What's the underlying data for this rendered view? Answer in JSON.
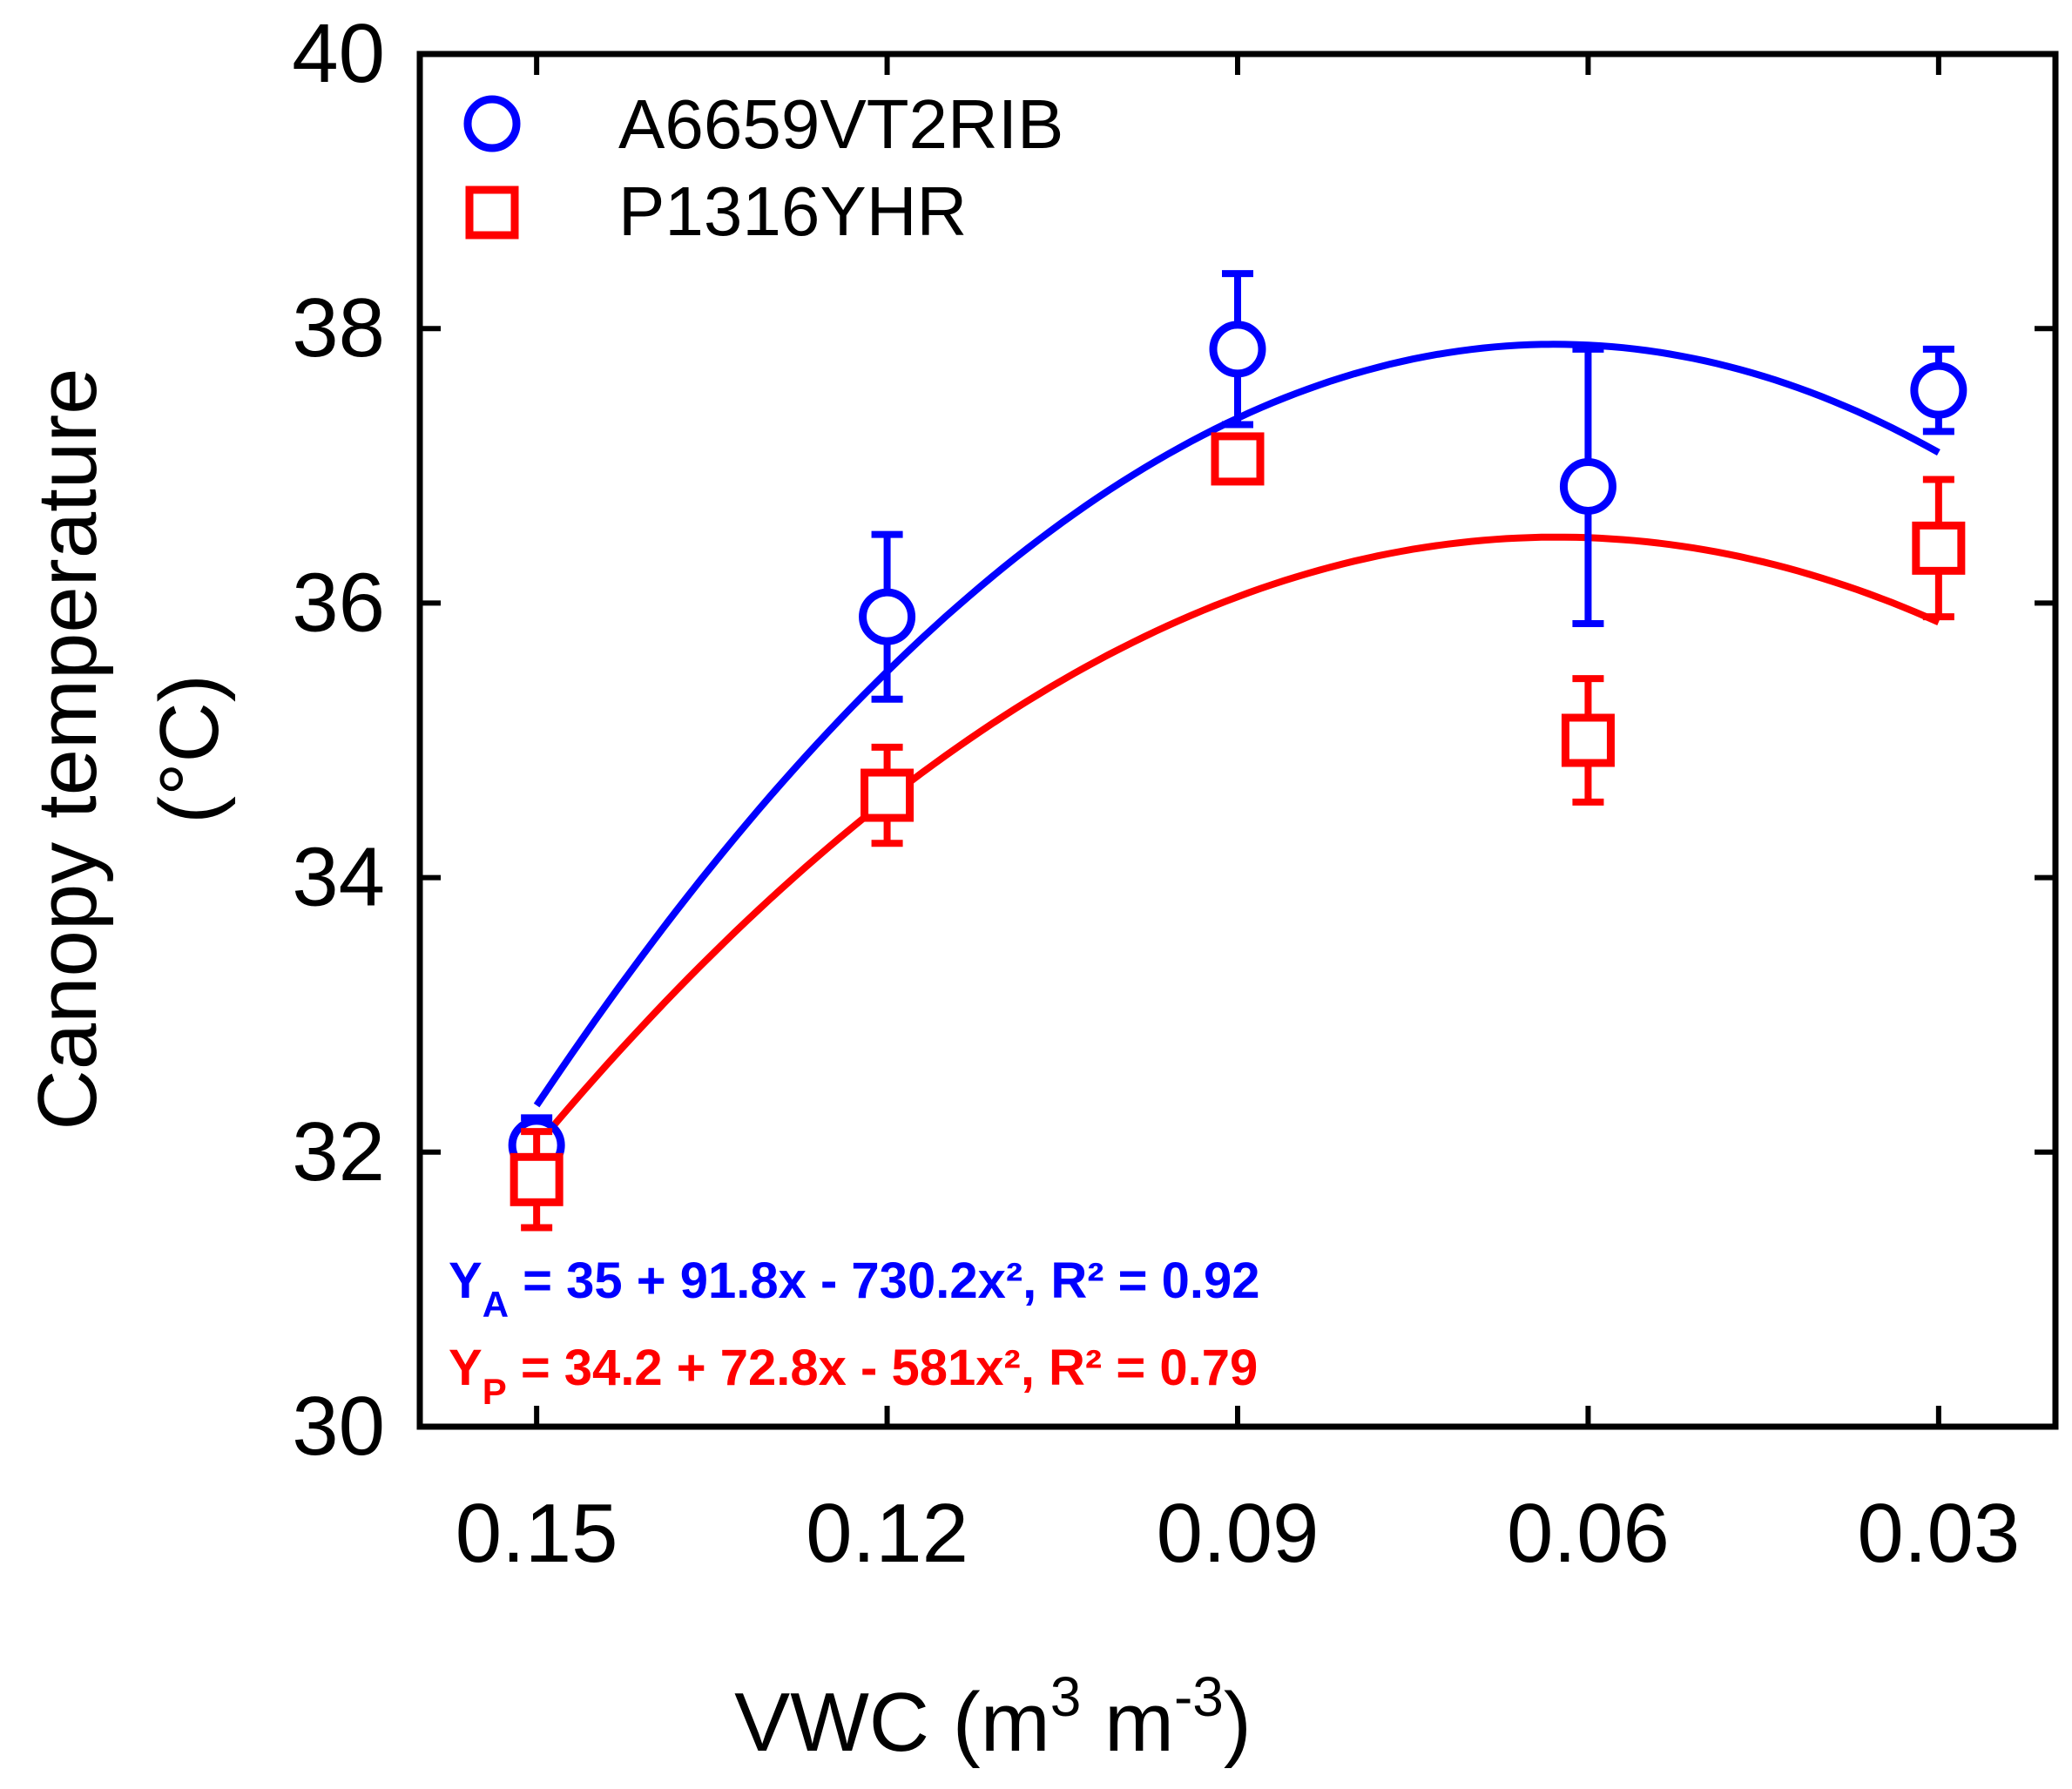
{
  "colors": {
    "series_a": "#0000ff",
    "series_p": "#ff0000",
    "axis": "#000000"
  },
  "chart_data": {
    "type": "scatter",
    "title": "",
    "xlabel": {
      "prefix": "VWC (m",
      "sup1": "3",
      "mid": " m",
      "sup2": "-3",
      "suffix": ")"
    },
    "ylabel": {
      "line1": "Canopy temperature",
      "line2": "(°C)"
    },
    "categories": [
      "0.15",
      "0.12",
      "0.09",
      "0.06",
      "0.03"
    ],
    "x": [
      0.15,
      0.12,
      0.09,
      0.06,
      0.03
    ],
    "xlim": [
      0.16,
      0.02
    ],
    "ylim": [
      30,
      40
    ],
    "yticks": [
      30,
      32,
      34,
      36,
      38,
      40
    ],
    "legend_position": "top-left",
    "series": [
      {
        "name": "A6659VT2RIB",
        "marker": "circle",
        "color": "#0000ff",
        "values": [
          32.05,
          35.9,
          37.85,
          36.85,
          37.55
        ],
        "error": [
          0.2,
          0.6,
          0.55,
          1.0,
          0.3
        ],
        "fit": {
          "intercept": 35,
          "b1": 91.8,
          "b2": -730.2,
          "r2": 0.92
        }
      },
      {
        "name": "P1316YHR",
        "marker": "square",
        "color": "#ff0000",
        "values": [
          31.8,
          34.6,
          37.05,
          35.0,
          36.4
        ],
        "error": [
          0.35,
          0.35,
          0.15,
          0.45,
          0.5
        ],
        "fit": {
          "intercept": 34.2,
          "b1": 72.8,
          "b2": -581,
          "r2": 0.79
        }
      }
    ],
    "annotations": [
      {
        "y": "Y",
        "sub": "A",
        "rest": " = 35 + 91.8x - 730.2x², R² = 0.92",
        "color": "#0000ff"
      },
      {
        "y": "Y",
        "sub": "P",
        "rest": " = 34.2 + 72.8x - 581x², R² = 0.79",
        "color": "#ff0000"
      }
    ]
  }
}
